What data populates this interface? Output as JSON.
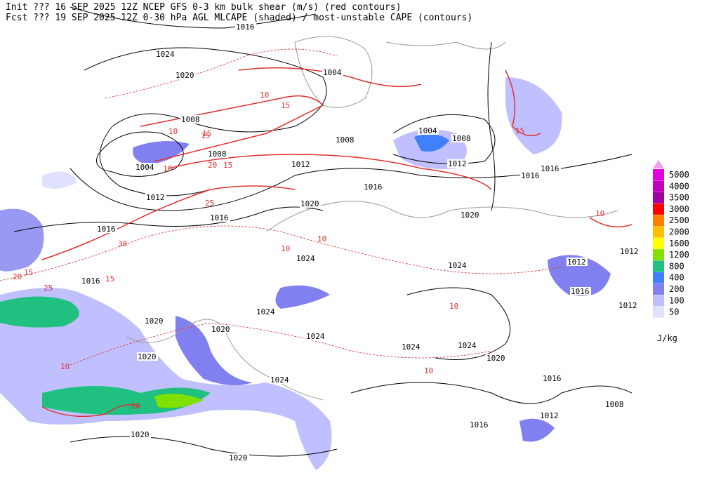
{
  "header": {
    "init": "Init  ??? 16 SEP 2025 12Z   NCEP GFS 0-3 km bulk shear (m/s) (red contours)",
    "fcst": "Fcst ??? 19 SEP 2025 12Z   0-30 hPa AGL MLCAPE (shaded) / most-unstable CAPE (contours)"
  },
  "legend": {
    "unit": "J/kg",
    "levels": [
      {
        "label": "5000",
        "color": "#e000e0"
      },
      {
        "label": "4000",
        "color": "#c000c0"
      },
      {
        "label": "3500",
        "color": "#a000a0"
      },
      {
        "label": "3000",
        "color": "#ff0000"
      },
      {
        "label": "2500",
        "color": "#ff8000"
      },
      {
        "label": "2000",
        "color": "#ffc000"
      },
      {
        "label": "1600",
        "color": "#ffff00"
      },
      {
        "label": "1200",
        "color": "#80e000"
      },
      {
        "label": "800",
        "color": "#20c080"
      },
      {
        "label": "400",
        "color": "#4080ff"
      },
      {
        "label": "200",
        "color": "#8080f0"
      },
      {
        "label": "100",
        "color": "#c0c0ff"
      },
      {
        "label": "50",
        "color": "#e0e0ff"
      }
    ]
  },
  "pressure_labels": [
    "1016",
    "1024",
    "1020",
    "1004",
    "1008",
    "1008",
    "1004",
    "1012",
    "1012",
    "1008",
    "1016",
    "1004",
    "1008",
    "1012",
    "1016",
    "1016",
    "1020",
    "1016",
    "1016",
    "1016",
    "1020",
    "1024",
    "1024",
    "1012",
    "1016",
    "1012",
    "1012",
    "1024",
    "1020",
    "1020",
    "1024",
    "1024",
    "1024",
    "1020",
    "1020",
    "1016",
    "1024",
    "1008",
    "1012",
    "1016",
    "1020",
    "1020"
  ],
  "shear_labels": [
    "10",
    "15",
    "15",
    "20",
    "15",
    "10",
    "15",
    "10",
    "25",
    "30",
    "15",
    "20",
    "25",
    "15",
    "10",
    "10",
    "10",
    "10",
    "10",
    "10",
    "15",
    "10"
  ]
}
